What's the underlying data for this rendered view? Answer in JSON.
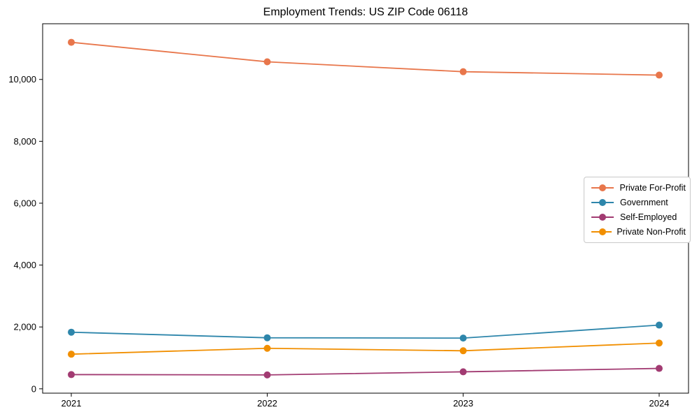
{
  "chart_data": {
    "type": "line",
    "title": "Employment Trends: US ZIP Code 06118",
    "categories": [
      "2021",
      "2022",
      "2023",
      "2024"
    ],
    "series": [
      {
        "name": "Private For-Profit",
        "color": "#E8764B",
        "values": [
          11200,
          10570,
          10250,
          10140
        ]
      },
      {
        "name": "Government",
        "color": "#2E86AB",
        "values": [
          1830,
          1650,
          1640,
          2060
        ]
      },
      {
        "name": "Self-Employed",
        "color": "#A23B72",
        "values": [
          460,
          450,
          550,
          660
        ]
      },
      {
        "name": "Private Non-Profit",
        "color": "#F18F01",
        "values": [
          1120,
          1310,
          1230,
          1480
        ]
      }
    ],
    "xlabel": "",
    "ylabel": "",
    "ylim": [
      -140,
      11800
    ],
    "ytick_values": [
      0,
      2000,
      4000,
      6000,
      8000,
      10000
    ],
    "ytick_labels": [
      "0",
      "2,000",
      "4,000",
      "6,000",
      "8,000",
      "10,000"
    ],
    "grid": false,
    "legend_position": "right-middle",
    "axis_color": "#000000",
    "background": "#ffffff"
  }
}
